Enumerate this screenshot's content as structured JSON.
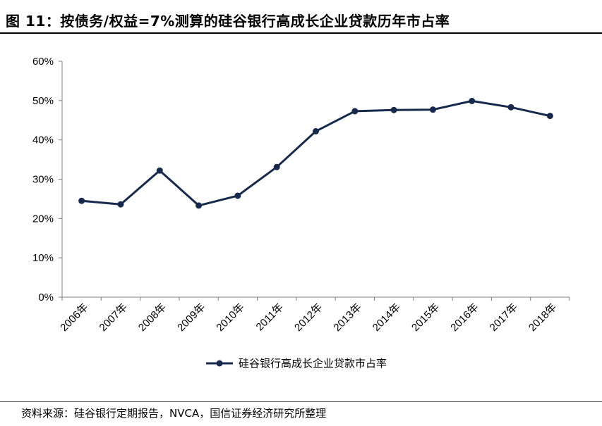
{
  "header": {
    "title": "图 11：按债务/权益=7%测算的硅谷银行高成长企业贷款历年市占率"
  },
  "footer": {
    "source": "资料来源：硅谷银行定期报告，NVCA，国信证券经济研究所整理"
  },
  "colors": {
    "series": "#17294d",
    "axis": "#808080"
  },
  "chart_data": {
    "type": "line",
    "title": "",
    "xlabel": "",
    "ylabel": "",
    "categories": [
      "2006年",
      "2007年",
      "2008年",
      "2009年",
      "2010年",
      "2011年",
      "2012年",
      "2013年",
      "2014年",
      "2015年",
      "2016年",
      "2017年",
      "2018年"
    ],
    "series": [
      {
        "name": "硅谷银行高成长企业贷款市占率",
        "values": [
          24.5,
          23.6,
          32.2,
          23.3,
          25.8,
          33.1,
          42.2,
          47.3,
          47.6,
          47.7,
          49.9,
          48.3,
          46.1
        ],
        "marker": "circle"
      }
    ],
    "ylim": [
      0,
      60
    ],
    "yticks": [
      0,
      10,
      20,
      30,
      40,
      50,
      60
    ],
    "ytick_labels": [
      "0%",
      "10%",
      "20%",
      "30%",
      "40%",
      "50%",
      "60%"
    ],
    "grid": false,
    "legend_position": "bottom"
  }
}
